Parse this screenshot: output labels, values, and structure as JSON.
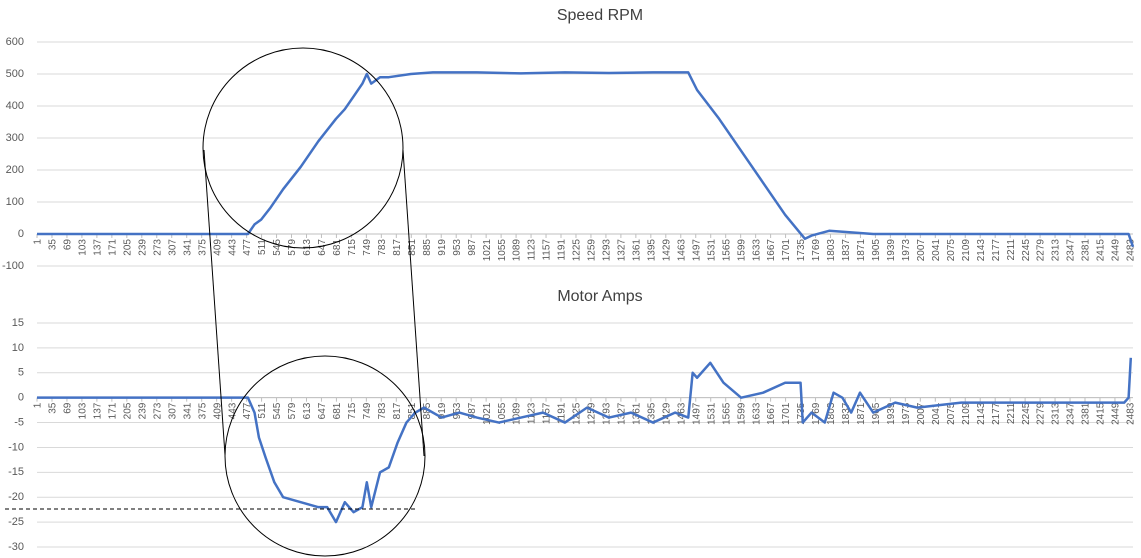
{
  "chart_data": [
    {
      "type": "line",
      "title": "Speed RPM",
      "x": [
        1,
        100,
        200,
        300,
        400,
        480,
        495,
        510,
        530,
        560,
        600,
        640,
        680,
        700,
        720,
        740,
        750,
        760,
        780,
        800,
        850,
        900,
        1000,
        1100,
        1200,
        1300,
        1400,
        1480,
        1500,
        1550,
        1600,
        1650,
        1700,
        1730,
        1745,
        1760,
        1800,
        1850,
        1900,
        2000,
        2100,
        2200,
        2300,
        2400,
        2480,
        2490
      ],
      "series": [
        {
          "name": "Speed RPM",
          "color": "#4472c4",
          "values": [
            0,
            0,
            0,
            0,
            0,
            0,
            30,
            45,
            80,
            140,
            210,
            290,
            360,
            390,
            430,
            470,
            500,
            470,
            490,
            490,
            500,
            505,
            505,
            502,
            505,
            503,
            505,
            505,
            450,
            360,
            260,
            160,
            60,
            10,
            -15,
            -5,
            10,
            5,
            0,
            0,
            0,
            0,
            0,
            0,
            0,
            -40
          ]
        }
      ],
      "xlim": [
        1,
        2490
      ],
      "xticks": [
        1,
        35,
        69,
        103,
        137,
        171,
        205,
        239,
        273,
        307,
        341,
        375,
        409,
        443,
        477,
        511,
        545,
        579,
        613,
        647,
        681,
        715,
        749,
        783,
        817,
        851,
        885,
        919,
        953,
        987,
        1021,
        1055,
        1089,
        1123,
        1157,
        1191,
        1225,
        1259,
        1293,
        1327,
        1361,
        1395,
        1429,
        1463,
        1497,
        1531,
        1565,
        1599,
        1633,
        1667,
        1701,
        1735,
        1769,
        1803,
        1837,
        1871,
        1905,
        1939,
        1973,
        2007,
        2041,
        2075,
        2109,
        2143,
        2177,
        2211,
        2245,
        2279,
        2313,
        2347,
        2381,
        2415,
        2449,
        2483
      ],
      "ylim": [
        -100,
        600
      ],
      "yticks": [
        -100,
        0,
        100,
        200,
        300,
        400,
        500,
        600
      ],
      "grid": true
    },
    {
      "type": "line",
      "title": "Motor Amps",
      "x": [
        1,
        100,
        200,
        300,
        400,
        480,
        495,
        505,
        520,
        540,
        560,
        600,
        640,
        660,
        680,
        700,
        720,
        740,
        750,
        760,
        780,
        800,
        820,
        840,
        860,
        880,
        920,
        960,
        1000,
        1050,
        1100,
        1150,
        1200,
        1250,
        1300,
        1350,
        1400,
        1450,
        1480,
        1490,
        1500,
        1530,
        1560,
        1600,
        1650,
        1700,
        1735,
        1740,
        1760,
        1790,
        1810,
        1830,
        1850,
        1870,
        1900,
        1950,
        2000,
        2100,
        2200,
        2300,
        2400,
        2470,
        2480,
        2485
      ],
      "series": [
        {
          "name": "Motor Amps",
          "color": "#4472c4",
          "values": [
            0,
            0,
            0,
            0,
            0,
            0,
            -3,
            -8,
            -12,
            -17,
            -20,
            -21,
            -22,
            -22,
            -25,
            -21,
            -23,
            -22,
            -17,
            -22,
            -15,
            -14,
            -9,
            -5,
            -3,
            -2,
            -4,
            -3,
            -4,
            -5,
            -4,
            -3,
            -5,
            -2,
            -4,
            -3,
            -5,
            -3,
            -4,
            5,
            4,
            7,
            3,
            0,
            1,
            3,
            3,
            -5,
            -3,
            -5,
            1,
            0,
            -3,
            1,
            -3,
            -1,
            -2,
            -1,
            -1,
            -1,
            -1,
            -1,
            0,
            8
          ]
        }
      ],
      "xlim": [
        1,
        2490
      ],
      "xticks": [
        1,
        35,
        69,
        103,
        137,
        171,
        205,
        239,
        273,
        307,
        341,
        375,
        409,
        443,
        477,
        511,
        545,
        579,
        613,
        647,
        681,
        715,
        749,
        783,
        817,
        851,
        885,
        919,
        953,
        987,
        1021,
        1055,
        1089,
        1123,
        1157,
        1191,
        1225,
        1259,
        1293,
        1327,
        1361,
        1395,
        1429,
        1463,
        1497,
        1531,
        1565,
        1599,
        1633,
        1667,
        1701,
        1735,
        1769,
        1803,
        1837,
        1871,
        1905,
        1939,
        1973,
        2007,
        2041,
        2075,
        2109,
        2143,
        2177,
        2211,
        2245,
        2279,
        2313,
        2347,
        2381,
        2415,
        2449,
        2483
      ],
      "ylim": [
        -30,
        15
      ],
      "yticks": [
        -30,
        -25,
        -20,
        -15,
        -10,
        -5,
        0,
        5,
        10,
        15
      ],
      "grid": true
    }
  ]
}
